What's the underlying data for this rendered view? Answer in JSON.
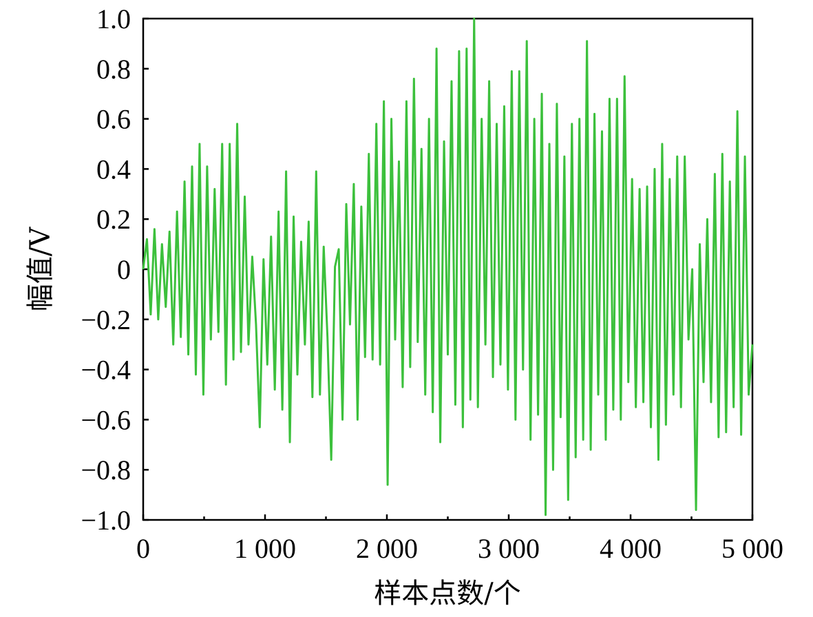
{
  "chart_data": {
    "type": "line",
    "title": "",
    "xlabel": "样本点数/个",
    "ylabel": "幅值/V",
    "xlim": [
      0,
      5000
    ],
    "ylim": [
      -1.0,
      1.0
    ],
    "x_ticks": [
      0,
      1000,
      2000,
      3000,
      4000,
      5000
    ],
    "x_tick_labels": [
      "0",
      "1 000",
      "2 000",
      "3 000",
      "4 000",
      "5 000"
    ],
    "y_ticks": [
      1.0,
      0.8,
      0.6,
      0.4,
      0.2,
      0,
      -0.2,
      -0.4,
      -0.6,
      -0.8,
      -1.0
    ],
    "y_tick_labels": [
      "1.0",
      "0.8",
      "0.6",
      "0.4",
      "0.2",
      "0",
      "−0.2",
      "−0.4",
      "−0.6",
      "−0.8",
      "−1.0"
    ],
    "grid": false,
    "line_color": "#3cc03c",
    "series": [
      {
        "values": [
          0.0,
          0.12,
          -0.18,
          0.16,
          -0.2,
          0.1,
          -0.15,
          0.15,
          -0.3,
          0.23,
          -0.27,
          0.35,
          -0.34,
          0.41,
          -0.42,
          0.5,
          -0.5,
          0.41,
          -0.28,
          0.32,
          -0.25,
          0.5,
          -0.46,
          0.5,
          -0.36,
          0.58,
          -0.33,
          0.29,
          -0.3,
          0.05,
          -0.22,
          -0.63,
          0.04,
          -0.38,
          0.13,
          -0.48,
          0.23,
          -0.56,
          0.39,
          -0.69,
          0.21,
          -0.42,
          0.11,
          -0.3,
          0.19,
          -0.51,
          0.39,
          -0.5,
          0.09,
          -0.27,
          -0.76,
          0.01,
          0.08,
          -0.6,
          0.26,
          -0.22,
          0.34,
          -0.6,
          0.25,
          -0.35,
          0.46,
          -0.36,
          0.58,
          -0.38,
          0.67,
          -0.86,
          0.6,
          -0.28,
          0.43,
          -0.47,
          0.67,
          -0.39,
          0.76,
          -0.29,
          0.48,
          -0.5,
          0.6,
          -0.57,
          0.88,
          -0.69,
          0.51,
          -0.34,
          0.75,
          -0.54,
          0.87,
          -0.63,
          0.88,
          -0.52,
          1.0,
          -0.55,
          0.6,
          -0.3,
          0.75,
          -0.43,
          0.58,
          -0.38,
          0.65,
          -0.48,
          0.79,
          -0.6,
          0.79,
          -0.4,
          0.91,
          -0.68,
          0.6,
          -0.58,
          0.7,
          -0.98,
          0.5,
          -0.8,
          0.66,
          -0.59,
          0.45,
          -0.92,
          0.58,
          -0.75,
          0.6,
          -0.68,
          0.91,
          -0.72,
          0.62,
          -0.5,
          0.55,
          -0.68,
          0.68,
          -0.56,
          0.68,
          -0.6,
          0.77,
          -0.45,
          0.36,
          -0.55,
          0.32,
          -0.53,
          0.33,
          -0.63,
          0.4,
          -0.76,
          0.5,
          -0.62,
          0.36,
          -0.5,
          0.45,
          -0.55,
          0.45,
          -0.28,
          0.0,
          -0.96,
          0.1,
          -0.45,
          0.2,
          -0.53,
          0.38,
          -0.67,
          0.46,
          -0.65,
          0.35,
          -0.55,
          0.63,
          -0.66,
          0.45,
          -0.5,
          -0.3
        ]
      }
    ]
  }
}
